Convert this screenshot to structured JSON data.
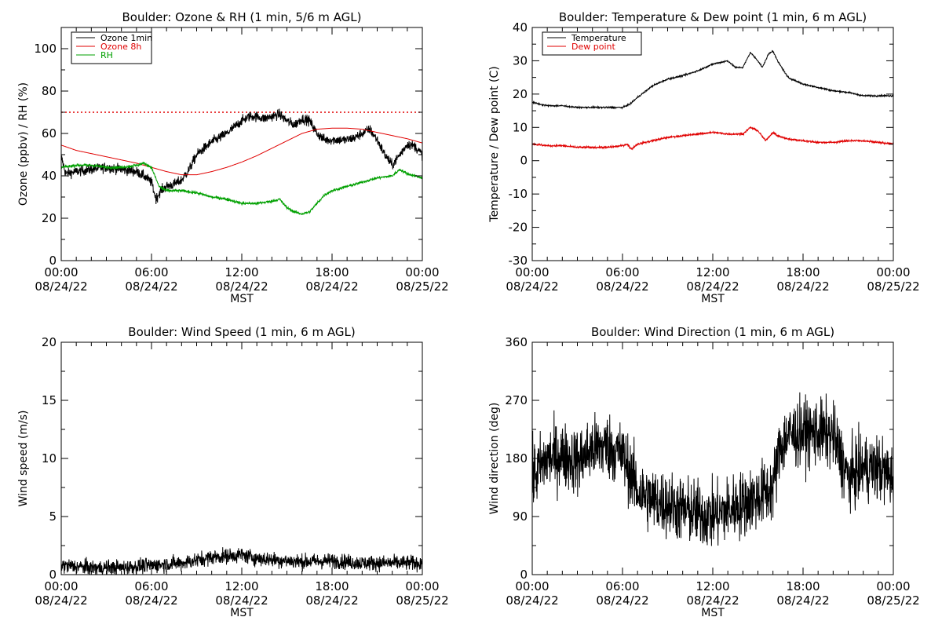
{
  "chart_data": [
    {
      "type": "line",
      "title": "Boulder: Ozone & RH (1 min, 5/6 m AGL)",
      "xlabel": "MST",
      "ylabel": "Ozone (ppbv) / RH (%)",
      "xlim": [
        0,
        24
      ],
      "ylim": [
        0,
        110
      ],
      "yticks": [
        0,
        20,
        40,
        60,
        80,
        100
      ],
      "xticks": [
        {
          "v": 0,
          "time": "00:00",
          "date": "08/24/22"
        },
        {
          "v": 6,
          "time": "06:00",
          "date": "08/24/22"
        },
        {
          "v": 12,
          "time": "12:00",
          "date": "08/24/22"
        },
        {
          "v": 18,
          "time": "18:00",
          "date": "08/24/22"
        },
        {
          "v": 24,
          "time": "00:00",
          "date": "08/25/22"
        }
      ],
      "legend_position": "top-left",
      "hline": {
        "value": 70,
        "color": "#e00000",
        "style": "dotted"
      },
      "series": [
        {
          "name": "Ozone 1min",
          "color": "#000000",
          "noise": 2.5,
          "x": [
            0,
            0.3,
            1,
            2,
            3,
            4,
            5,
            5.5,
            6,
            6.3,
            6.6,
            7,
            7.5,
            8,
            8.5,
            9,
            10,
            11,
            12,
            12.5,
            13,
            13.5,
            14,
            14.5,
            15,
            15.5,
            16,
            16.5,
            17,
            17.5,
            18,
            18.5,
            19,
            19.5,
            20,
            20.5,
            21,
            21.5,
            22,
            22.5,
            23,
            23.5,
            24
          ],
          "y": [
            49,
            41,
            42,
            43,
            44,
            43,
            42,
            40,
            37,
            29,
            33,
            35,
            36,
            38,
            43,
            50,
            56,
            60,
            66,
            68,
            68,
            67,
            68,
            69,
            66,
            64,
            67,
            66,
            60,
            57,
            57,
            57,
            57,
            58,
            60,
            62,
            57,
            50,
            45,
            50,
            55,
            54,
            50
          ]
        },
        {
          "name": "Ozone 8h",
          "color": "#e00000",
          "noise": 0,
          "x": [
            0,
            1,
            2,
            3,
            4,
            5,
            6,
            7,
            8,
            9,
            10,
            11,
            12,
            13,
            14,
            15,
            16,
            17,
            18,
            19,
            20,
            21,
            22,
            23,
            24
          ],
          "y": [
            54.5,
            52,
            50.5,
            49,
            47.5,
            46,
            44,
            42,
            40.5,
            40.5,
            42,
            44,
            46.5,
            49.5,
            53,
            56.5,
            60,
            62,
            62.5,
            62.5,
            62,
            60.5,
            59,
            57.5,
            55.5
          ]
        },
        {
          "name": "RH",
          "color": "#00a000",
          "noise": 0.7,
          "x": [
            0,
            1,
            2,
            3,
            4,
            5,
            5.5,
            6,
            6.5,
            7,
            8,
            9,
            10,
            11,
            12,
            13,
            14,
            14.5,
            15,
            15.5,
            16,
            16.5,
            17,
            17.5,
            18,
            19,
            20,
            21,
            22,
            22.5,
            23,
            24
          ],
          "y": [
            44,
            45,
            45,
            44,
            44,
            45,
            46,
            44,
            35,
            33,
            33,
            32,
            30,
            29,
            27,
            27,
            28,
            29,
            25,
            23,
            22,
            23,
            27,
            31,
            33,
            35,
            37,
            39,
            40,
            43,
            41,
            39
          ]
        }
      ]
    },
    {
      "type": "line",
      "title": "Boulder: Temperature & Dew point (1 min, 6 m AGL)",
      "xlabel": "MST",
      "ylabel": "Temperature / Dew point (C)",
      "xlim": [
        0,
        24
      ],
      "ylim": [
        -30,
        40
      ],
      "yticks": [
        -30,
        -20,
        -10,
        0,
        10,
        20,
        30,
        40
      ],
      "xticks": [
        {
          "v": 0,
          "time": "00:00",
          "date": "08/24/22"
        },
        {
          "v": 6,
          "time": "06:00",
          "date": "08/24/22"
        },
        {
          "v": 12,
          "time": "12:00",
          "date": "08/24/22"
        },
        {
          "v": 18,
          "time": "18:00",
          "date": "08/24/22"
        },
        {
          "v": 24,
          "time": "00:00",
          "date": "08/25/22"
        }
      ],
      "legend_position": "top-left",
      "series": [
        {
          "name": "Temperature",
          "color": "#000000",
          "noise": 0.25,
          "x": [
            0,
            1,
            2,
            3,
            4,
            5,
            6,
            6.5,
            7,
            8,
            9,
            10,
            11,
            12,
            13,
            13.5,
            14,
            14.5,
            15,
            15.3,
            15.7,
            16,
            16.3,
            17,
            18,
            19,
            20,
            21,
            22,
            23,
            24
          ],
          "y": [
            17.5,
            16.5,
            16.5,
            16,
            16,
            16,
            16,
            17,
            19,
            22.5,
            24.5,
            25.5,
            27,
            29,
            30,
            28,
            28,
            32.5,
            30,
            28,
            32,
            33,
            30,
            25,
            23,
            22,
            21,
            20.5,
            19.5,
            19.5,
            19.5
          ]
        },
        {
          "name": "Dew point",
          "color": "#e00000",
          "noise": 0.3,
          "x": [
            0,
            1,
            2,
            3,
            4,
            5,
            6,
            6.3,
            6.6,
            7,
            8,
            9,
            10,
            11,
            12,
            13,
            14,
            14.5,
            15,
            15.5,
            16,
            16.3,
            17,
            18,
            19,
            20,
            21,
            22,
            23,
            24
          ],
          "y": [
            5,
            4.5,
            4.5,
            4,
            4,
            4,
            4.5,
            5,
            3.5,
            5,
            6,
            7,
            7.5,
            8,
            8.5,
            8,
            8,
            10,
            9,
            6,
            8.5,
            7.5,
            6.5,
            6,
            5.5,
            5.5,
            6,
            6,
            5.5,
            5
          ]
        }
      ]
    },
    {
      "type": "line",
      "title": "Boulder: Wind Speed (1 min, 6 m AGL)",
      "xlabel": "MST",
      "ylabel": "Wind speed (m/s)",
      "xlim": [
        0,
        24
      ],
      "ylim": [
        0,
        20
      ],
      "yticks": [
        0,
        5,
        10,
        15,
        20
      ],
      "xticks": [
        {
          "v": 0,
          "time": "00:00",
          "date": "08/24/22"
        },
        {
          "v": 6,
          "time": "06:00",
          "date": "08/24/22"
        },
        {
          "v": 12,
          "time": "12:00",
          "date": "08/24/22"
        },
        {
          "v": 18,
          "time": "18:00",
          "date": "08/24/22"
        },
        {
          "v": 24,
          "time": "00:00",
          "date": "08/25/22"
        }
      ],
      "series": [
        {
          "name": "",
          "color": "#000000",
          "noise": 0.7,
          "x": [
            0,
            2,
            4,
            6,
            8,
            10,
            12,
            13,
            14,
            16,
            18,
            20,
            22,
            24
          ],
          "y": [
            0.8,
            0.6,
            0.6,
            0.8,
            1.0,
            1.5,
            1.7,
            1.4,
            1.3,
            1.1,
            1.2,
            1.0,
            1.0,
            1.0
          ]
        }
      ]
    },
    {
      "type": "line",
      "title": "Boulder: Wind Direction (1 min, 6 m AGL)",
      "xlabel": "MST",
      "ylabel": "Wind direction (deg)",
      "xlim": [
        0,
        24
      ],
      "ylim": [
        0,
        360
      ],
      "yticks": [
        0,
        90,
        180,
        270,
        360
      ],
      "xticks": [
        {
          "v": 0,
          "time": "00:00",
          "date": "08/24/22"
        },
        {
          "v": 6,
          "time": "06:00",
          "date": "08/24/22"
        },
        {
          "v": 12,
          "time": "12:00",
          "date": "08/24/22"
        },
        {
          "v": 18,
          "time": "18:00",
          "date": "08/24/22"
        },
        {
          "v": 24,
          "time": "00:00",
          "date": "08/25/22"
        }
      ],
      "series": [
        {
          "name": "",
          "color": "#000000",
          "noise": 55,
          "x": [
            0,
            1,
            2,
            3,
            4,
            5,
            6,
            6.5,
            7,
            8,
            9,
            10,
            11,
            12,
            13,
            14,
            15,
            16,
            16.5,
            17,
            18,
            19,
            20,
            21,
            22,
            23,
            24
          ],
          "y": [
            150,
            180,
            185,
            175,
            195,
            200,
            185,
            160,
            130,
            115,
            110,
            100,
            95,
            90,
            100,
            110,
            120,
            135,
            200,
            215,
            220,
            220,
            215,
            150,
            165,
            165,
            150
          ]
        }
      ]
    }
  ]
}
